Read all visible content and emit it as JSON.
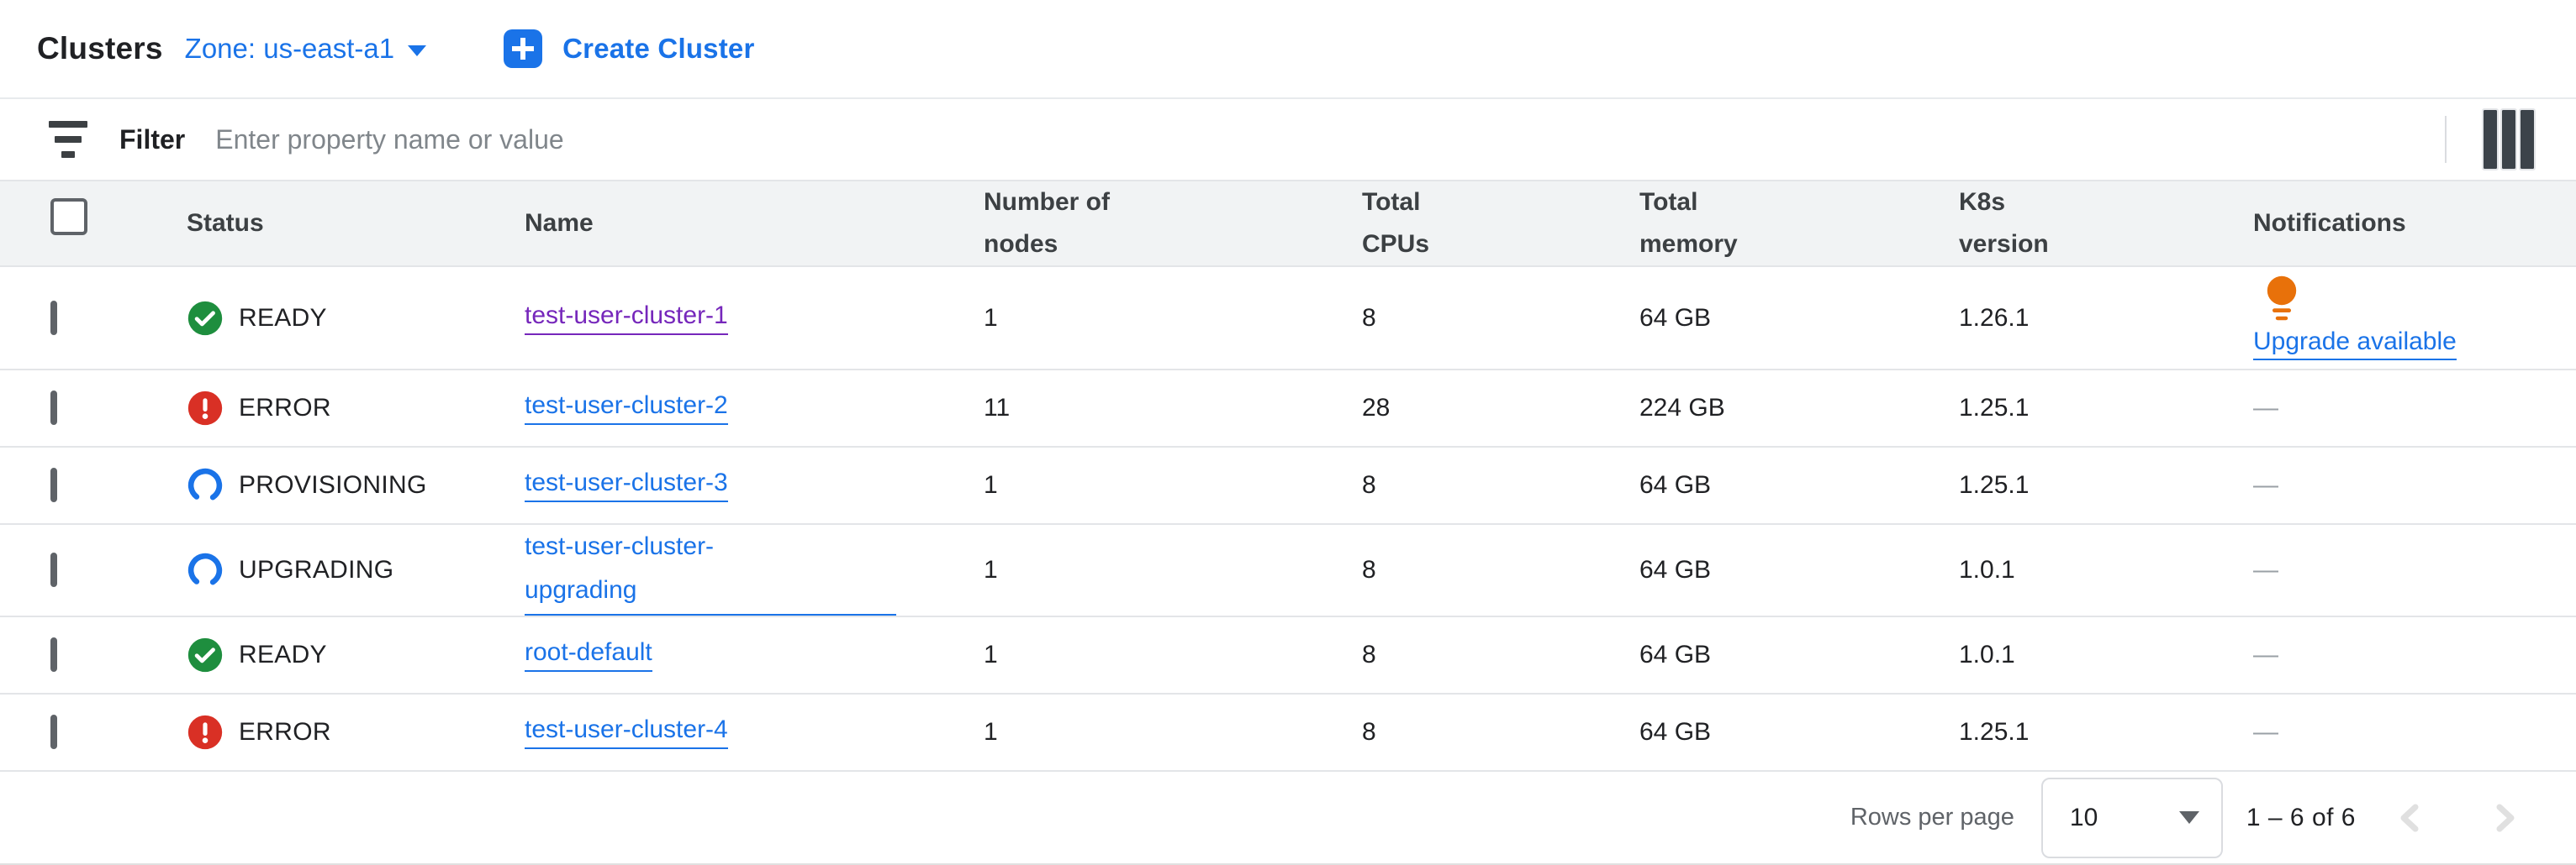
{
  "header": {
    "title": "Clusters",
    "zone_label": "Zone: us-east-a1",
    "create_button_label": "Create Cluster"
  },
  "filter": {
    "label": "Filter",
    "placeholder": "Enter property name or value"
  },
  "table": {
    "columns": [
      "Status",
      "Name",
      "Number of nodes",
      "Total CPUs",
      "Total memory",
      "K8s version",
      "Notifications"
    ],
    "empty_cell": "—",
    "rows": [
      {
        "status": "READY",
        "status_icon": "ready",
        "name": "test-user-cluster-1",
        "visited": true,
        "nodes": "1",
        "cpus": "8",
        "memory": "64 GB",
        "k8s": "1.26.1",
        "notification": "Upgrade available"
      },
      {
        "status": "ERROR",
        "status_icon": "error",
        "name": "test-user-cluster-2",
        "nodes": "11",
        "cpus": "28",
        "memory": "224 GB",
        "k8s": "1.25.1",
        "notification": null
      },
      {
        "status": "PROVISIONING",
        "status_icon": "spinner",
        "name": "test-user-cluster-3",
        "nodes": "1",
        "cpus": "8",
        "memory": "64 GB",
        "k8s": "1.25.1",
        "notification": null
      },
      {
        "status": "UPGRADING",
        "status_icon": "spinner",
        "name": "test-user-cluster-upgrading",
        "wrap_after": "test-user-cluster-",
        "nodes": "1",
        "cpus": "8",
        "memory": "64 GB",
        "k8s": "1.0.1",
        "notification": null
      },
      {
        "status": "READY",
        "status_icon": "ready",
        "name": "root-default",
        "nodes": "1",
        "cpus": "8",
        "memory": "64 GB",
        "k8s": "1.0.1",
        "notification": null
      },
      {
        "status": "ERROR",
        "status_icon": "error",
        "name": "test-user-cluster-4",
        "nodes": "1",
        "cpus": "8",
        "memory": "64 GB",
        "k8s": "1.25.1",
        "notification": null
      }
    ]
  },
  "footer": {
    "rows_per_page_label": "Rows per page",
    "rows_per_page_value": "10",
    "range_label": "1 – 6 of 6"
  },
  "colors": {
    "accent_blue": "#1a73e8",
    "visited_link_purple": "#7627bb",
    "ready_green": "#1e8e3e",
    "error_red": "#d93025",
    "bulb_orange": "#e8710a",
    "header_row_bg": "#f1f3f4",
    "divider": "#e3e5e8",
    "text": "#202124",
    "secondary_text": "#5f6368",
    "placeholder": "#80868b",
    "disabled_gray": "#dadce0"
  }
}
